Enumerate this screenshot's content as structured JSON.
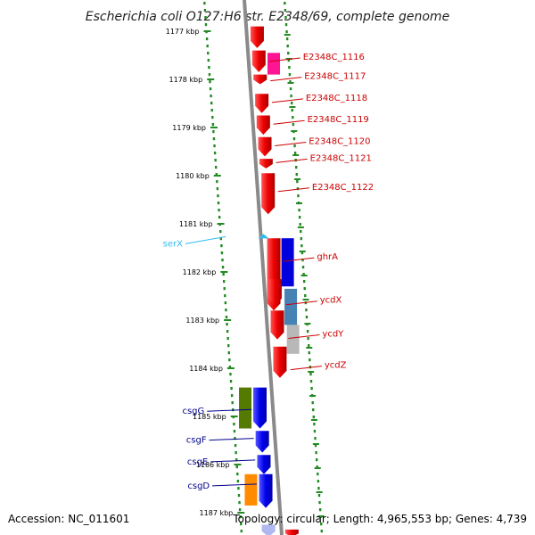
{
  "title": "Escherichia coli O127:H6 str. E2348/69, complete genome",
  "footer": {
    "accession": "Accession: NC_011601",
    "topology": "Topology: circular; Length: 4,965,553 bp; Genes: 4,739"
  },
  "colors": {
    "backbone": "#8a8a8a",
    "forward_label": "#cc0000",
    "reverse_label": "#00008b",
    "trna_label": "#33bbee",
    "dots": "#228b22"
  },
  "ticks": [
    {
      "label": "1177 kbp",
      "kbp": 1177
    },
    {
      "label": "1178 kbp",
      "kbp": 1178
    },
    {
      "label": "1179 kbp",
      "kbp": 1179
    },
    {
      "label": "1180 kbp",
      "kbp": 1180
    },
    {
      "label": "1181 kbp",
      "kbp": 1181
    },
    {
      "label": "1182 kbp",
      "kbp": 1182
    },
    {
      "label": "1183 kbp",
      "kbp": 1183
    },
    {
      "label": "1184 kbp",
      "kbp": 1184
    },
    {
      "label": "1185 kbp",
      "kbp": 1185
    },
    {
      "label": "1186 kbp",
      "kbp": 1186
    },
    {
      "label": "1187 kbp",
      "kbp": 1187
    }
  ],
  "forward_labels": [
    {
      "text": "E2348C_1116",
      "kbp": 1177.5
    },
    {
      "text": "E2348C_1117",
      "kbp": 1177.9
    },
    {
      "text": "E2348C_1118",
      "kbp": 1178.35
    },
    {
      "text": "E2348C_1119",
      "kbp": 1178.8
    },
    {
      "text": "E2348C_1120",
      "kbp": 1179.25
    },
    {
      "text": "E2348C_1121",
      "kbp": 1179.6
    },
    {
      "text": "E2348C_1122",
      "kbp": 1180.2
    },
    {
      "text": "ghrA",
      "kbp": 1181.65
    },
    {
      "text": "ycdX",
      "kbp": 1182.55
    },
    {
      "text": "ycdY",
      "kbp": 1183.25
    },
    {
      "text": "ycdZ",
      "kbp": 1183.9
    }
  ],
  "reverse_labels": [
    {
      "text": "csgG",
      "kbp": 1184.8
    },
    {
      "text": "csgF",
      "kbp": 1185.4
    },
    {
      "text": "csgE",
      "kbp": 1185.85
    },
    {
      "text": "csgD",
      "kbp": 1186.35
    }
  ],
  "trna_labels": [
    {
      "text": "serX",
      "kbp": 1181.1
    }
  ],
  "features": [
    {
      "strand": "+",
      "start": 1176.9,
      "end": 1177.35,
      "color": "#ee0000",
      "type": "cds"
    },
    {
      "strand": "+",
      "start": 1177.4,
      "end": 1177.85,
      "color": "#ee0000",
      "type": "cds"
    },
    {
      "strand": "+",
      "start": 1177.9,
      "end": 1178.1,
      "color": "#ee0000",
      "type": "cds"
    },
    {
      "strand": "+",
      "start": 1178.3,
      "end": 1178.7,
      "color": "#ee0000",
      "type": "cds"
    },
    {
      "strand": "+",
      "start": 1178.75,
      "end": 1179.15,
      "color": "#ee0000",
      "type": "cds"
    },
    {
      "strand": "+",
      "start": 1179.2,
      "end": 1179.6,
      "color": "#ee0000",
      "type": "cds"
    },
    {
      "strand": "+",
      "start": 1179.65,
      "end": 1179.85,
      "color": "#ee0000",
      "type": "cds"
    },
    {
      "strand": "+",
      "start": 1179.95,
      "end": 1180.8,
      "color": "#ee0000",
      "type": "cds"
    },
    {
      "strand": "+",
      "start": 1181.3,
      "end": 1182.8,
      "color": "#ee0000",
      "type": "cds"
    },
    {
      "strand": "+",
      "start": 1182.15,
      "end": 1182.7,
      "color": "#ee0000",
      "type": "cds"
    },
    {
      "strand": "+",
      "start": 1182.8,
      "end": 1183.4,
      "color": "#ee0000",
      "type": "cds"
    },
    {
      "strand": "+",
      "start": 1183.55,
      "end": 1184.2,
      "color": "#ee0000",
      "type": "cds"
    },
    {
      "strand": "+",
      "start": 1187.35,
      "end": 1187.5,
      "color": "#ee0000",
      "type": "cds"
    },
    {
      "strand": "-",
      "start": 1184.4,
      "end": 1185.25,
      "color": "#0000ee",
      "type": "cds"
    },
    {
      "strand": "-",
      "start": 1185.3,
      "end": 1185.75,
      "color": "#0000ee",
      "type": "cds"
    },
    {
      "strand": "-",
      "start": 1185.8,
      "end": 1186.2,
      "color": "#0000ee",
      "type": "cds"
    },
    {
      "strand": "-",
      "start": 1186.2,
      "end": 1186.9,
      "color": "#0000ee",
      "type": "cds"
    },
    {
      "strand": "-",
      "start": 1187.25,
      "end": 1187.5,
      "color": "#b0b8f0",
      "type": "cds"
    }
  ],
  "outer_boxes": [
    {
      "side": "plus",
      "start": 1177.45,
      "end": 1177.9,
      "color": "#ff1493"
    },
    {
      "side": "plus",
      "start": 1181.3,
      "end": 1182.3,
      "color": "#0000dd"
    },
    {
      "side": "plus",
      "start": 1182.35,
      "end": 1183.1,
      "color": "#4682b4"
    },
    {
      "side": "plus",
      "start": 1183.1,
      "end": 1183.7,
      "color": "#b8b8b8"
    },
    {
      "side": "minus",
      "start": 1184.4,
      "end": 1185.25,
      "color": "#557a00"
    },
    {
      "side": "minus",
      "start": 1186.2,
      "end": 1186.85,
      "color": "#ff8c00"
    }
  ]
}
